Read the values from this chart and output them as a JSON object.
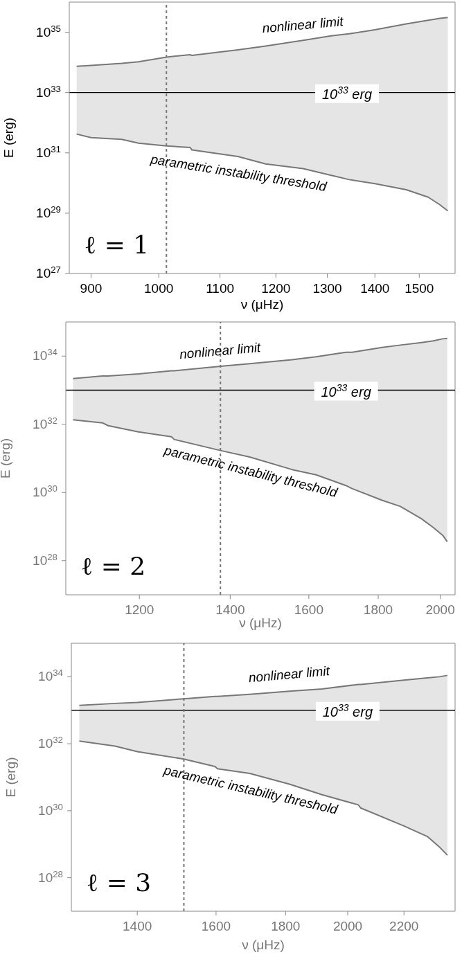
{
  "chart_data": [
    {
      "type": "line",
      "xlabel": "ν (μHz)",
      "ylabel": "E (erg)",
      "log": "xy",
      "xlim": [
        870,
        1586
      ],
      "xticks": [
        900,
        1000,
        1100,
        1200,
        1300,
        1400,
        1500
      ],
      "ylim": [
        1e+27,
        1e+36
      ],
      "yticks": [
        {
          "value": 1e+27,
          "label": "10$^{27}$"
        },
        {
          "value": 1e+29,
          "label": "10$^{29}$"
        },
        {
          "value": 1e+31,
          "label": "10$^{31}$"
        },
        {
          "value": 1e+33,
          "label": "10$^{33}$"
        },
        {
          "value": 1e+35,
          "label": "10$^{35}$"
        }
      ],
      "x": [
        880,
        900,
        944,
        969,
        1012,
        1050,
        1053,
        1131,
        1181,
        1252,
        1308,
        1345,
        1400,
        1470,
        1521,
        1549,
        1568
      ],
      "series": [
        {
          "name": "nonlinear limit",
          "color": "#777777",
          "values": [
            7.4e+33,
            7.9e+33,
            9.3e+33,
            1.05e+34,
            1.5e+34,
            1.8e+34,
            1.7e+34,
            2.6e+34,
            3.5e+34,
            5.4e+34,
            7.6e+34,
            8.9e+34,
            1.2e+35,
            1.9e+35,
            2.5e+35,
            2.9e+35,
            3.1e+35
          ],
          "upper": [
            7.4e+33,
            7.9e+33,
            9.3e+33,
            1.05e+34,
            1.5e+34,
            1.8e+34,
            1.7e+34,
            2.6e+34,
            3.5e+34,
            5.4e+34,
            7.6e+34,
            8.9e+34,
            1.2e+35,
            1.9e+35,
            2.5e+35,
            2.9e+35,
            3.1e+35
          ],
          "lower": [
            4.2e+31,
            3.2e+31,
            2.8e+31,
            2.1e+31,
            1.7e+31,
            1.5e+31,
            1.26e+31,
            7.6e+30,
            4.3e+30,
            3e+30,
            1.8e+30,
            1.3e+30,
            9.5e+29,
            6e+29,
            3.4e+29,
            1.9e+29,
            1.2e+29
          ]
        },
        {
          "name": "parametric instability threshold",
          "color": "#777777",
          "values": [
            4.2e+31,
            3.2e+31,
            2.8e+31,
            2.1e+31,
            1.7e+31,
            1.5e+31,
            1.26e+31,
            7.6e+30,
            4.3e+30,
            3e+30,
            1.8e+30,
            1.3e+30,
            9.5e+29,
            6e+29,
            3.4e+29,
            1.9e+29,
            1.2e+29
          ]
        }
      ],
      "ref_lines": [
        {
          "axis": "y",
          "value": 1e+33,
          "label": "10$^{33}$ erg",
          "color": "#000000",
          "line_style": "solid"
        },
        {
          "axis": "x",
          "value": 1012,
          "color": "#777777",
          "line_style": "dashed"
        }
      ],
      "annotations": [
        "ℓ = 1"
      ]
    },
    {
      "type": "line",
      "xlabel": "ν (μHz)",
      "ylabel": "E (erg)",
      "log": "xy",
      "xlim": [
        1059,
        2051
      ],
      "xticks": [
        1200,
        1400,
        1600,
        1800,
        2000
      ],
      "ylim": [
        1e+27,
        1e+35
      ],
      "yticks": [
        {
          "value": 1e+28,
          "label": "10$^{28}$"
        },
        {
          "value": 1e+30,
          "label": "10$^{30}$"
        },
        {
          "value": 1e+32,
          "label": "10$^{32}$"
        },
        {
          "value": 1e+34,
          "label": "10$^{34}$"
        }
      ],
      "x": [
        1072,
        1127,
        1138,
        1198,
        1267,
        1273,
        1377,
        1447,
        1555,
        1620,
        1704,
        1722,
        1812,
        1869,
        1937,
        1977,
        2008,
        2024
      ],
      "series": [
        {
          "name": "nonlinear limit",
          "color": "#777777",
          "values": [
            2.2e+33,
            2.6e+33,
            2.6e+33,
            3e+33,
            3.7e+33,
            3.7e+33,
            5e+33,
            6e+33,
            7.8e+33,
            9.5e+33,
            1.3e+34,
            1.3e+34,
            1.8e+34,
            2.1e+34,
            2.5e+34,
            2.8e+34,
            3.2e+34,
            3.3e+34
          ],
          "upper": [
            2.2e+33,
            2.6e+33,
            2.6e+33,
            3e+33,
            3.7e+33,
            3.7e+33,
            5e+33,
            6e+33,
            7.8e+33,
            9.5e+33,
            1.3e+34,
            1.3e+34,
            1.8e+34,
            2.1e+34,
            2.5e+34,
            2.8e+34,
            3.2e+34,
            3.3e+34
          ],
          "lower": [
            1.35e+32,
            1.1e+32,
            9.1e+31,
            6e+31,
            4.3e+31,
            3.6e+31,
            1.7e+31,
            1.1e+31,
            4.7e+30,
            3.3e+30,
            1.6e+30,
            1.3e+30,
            5.9e+29,
            3.9e+29,
            1.7e+29,
            9.3e+28,
            5.6e+28,
            3.6e+28
          ]
        },
        {
          "name": "parametric instability threshold",
          "color": "#777777",
          "values": [
            1.35e+32,
            1.1e+32,
            9.1e+31,
            6e+31,
            4.3e+31,
            3.6e+31,
            1.7e+31,
            1.1e+31,
            4.7e+30,
            3.3e+30,
            1.6e+30,
            1.3e+30,
            5.9e+29,
            3.9e+29,
            1.7e+29,
            9.3e+28,
            5.6e+28,
            3.6e+28
          ]
        }
      ],
      "ref_lines": [
        {
          "axis": "y",
          "value": 1e+33,
          "label": "10$^{33}$ erg",
          "color": "#000000",
          "line_style": "solid"
        },
        {
          "axis": "x",
          "value": 1377,
          "color": "#777777",
          "line_style": "dashed"
        }
      ],
      "annotations": [
        "ℓ = 2"
      ]
    },
    {
      "type": "line",
      "xlabel": "ν (μHz)",
      "ylabel": "E (erg)",
      "log": "xy",
      "xlim": [
        1252,
        2399
      ],
      "xticks": [
        1400,
        1600,
        1800,
        2000,
        2200
      ],
      "ylim": [
        1e+27,
        1e+35
      ],
      "yticks": [
        {
          "value": 1e+28,
          "label": "10$^{28}$"
        },
        {
          "value": 1e+30,
          "label": "10$^{30}$"
        },
        {
          "value": 1e+32,
          "label": "10$^{32}$"
        },
        {
          "value": 1e+34,
          "label": "10$^{34}$"
        }
      ],
      "x": [
        1269,
        1348,
        1400,
        1515,
        1597,
        1604,
        1694,
        1812,
        1915,
        2036,
        2045,
        2200,
        2289,
        2336,
        2368
      ],
      "series": [
        {
          "name": "nonlinear limit",
          "color": "#777777",
          "values": [
            1.4e+33,
            1.6e+33,
            1.7e+33,
            2.2e+33,
            2.6e+33,
            2.6e+33,
            3e+33,
            3.7e+33,
            4.3e+33,
            5.9e+33,
            5.9e+33,
            7.9e+33,
            9.3e+33,
            1e+34,
            1.1e+34
          ],
          "upper": [
            1.4e+33,
            1.6e+33,
            1.7e+33,
            2.2e+33,
            2.6e+33,
            2.6e+33,
            3e+33,
            3.7e+33,
            4.3e+33,
            5.9e+33,
            5.9e+33,
            7.9e+33,
            9.3e+33,
            1e+34,
            1.1e+34
          ],
          "lower": [
            1.2e+32,
            8.5e+31,
            5.8e+31,
            3.5e+31,
            2.1e+31,
            1.8e+31,
            1.3e+31,
            6.2e+30,
            3e+30,
            1.5e+30,
            1.2e+30,
            3.5e+29,
            1.7e+29,
            8.3e+28,
            4.7e+28
          ]
        },
        {
          "name": "parametric instability threshold",
          "color": "#777777",
          "values": [
            1.2e+32,
            8.5e+31,
            5.8e+31,
            3.5e+31,
            2.1e+31,
            1.8e+31,
            1.3e+31,
            6.2e+30,
            3e+30,
            1.5e+30,
            1.2e+30,
            3.5e+29,
            1.7e+29,
            8.3e+28,
            4.7e+28
          ]
        }
      ],
      "ref_lines": [
        {
          "axis": "y",
          "value": 1e+33,
          "label": "10$^{33}$ erg",
          "color": "#000000",
          "line_style": "solid"
        },
        {
          "axis": "x",
          "value": 1515,
          "color": "#777777",
          "line_style": "dashed"
        }
      ],
      "annotations": [
        "ℓ = 3"
      ]
    }
  ]
}
